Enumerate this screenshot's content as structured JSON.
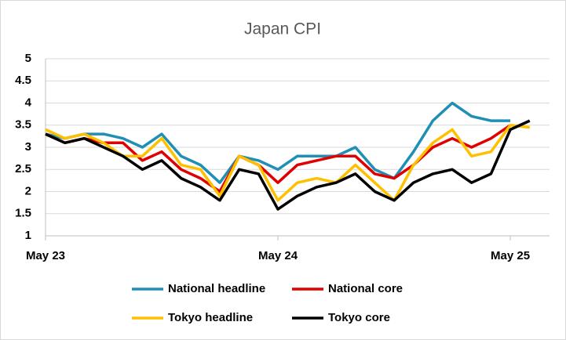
{
  "chart_data": {
    "type": "line",
    "title": "Japan CPI",
    "categories": [
      "May 23",
      null,
      null,
      null,
      null,
      null,
      null,
      null,
      null,
      null,
      null,
      null,
      "May 24",
      null,
      null,
      null,
      null,
      null,
      null,
      null,
      null,
      null,
      null,
      null,
      "May 25",
      null
    ],
    "series": [
      {
        "name": "National headline",
        "color": "#1f8fb4",
        "values": [
          3.3,
          3.2,
          3.3,
          3.3,
          3.2,
          3.0,
          3.3,
          2.8,
          2.6,
          2.2,
          2.8,
          2.7,
          2.5,
          2.8,
          2.8,
          2.8,
          3.0,
          2.5,
          2.3,
          2.9,
          3.6,
          4.0,
          3.7,
          3.6,
          3.6,
          null
        ]
      },
      {
        "name": "National core",
        "color": "#e00000",
        "values": [
          3.3,
          3.1,
          3.2,
          3.1,
          3.1,
          2.7,
          2.9,
          2.5,
          2.3,
          2.0,
          2.8,
          2.6,
          2.2,
          2.6,
          2.7,
          2.8,
          2.8,
          2.4,
          2.3,
          2.6,
          3.0,
          3.2,
          3.0,
          3.2,
          3.5,
          null
        ]
      },
      {
        "name": "Tokyo headline",
        "color": "#ffc000",
        "values": [
          3.4,
          3.2,
          3.3,
          3.1,
          2.8,
          2.8,
          3.2,
          2.6,
          2.5,
          1.9,
          2.8,
          2.6,
          1.8,
          2.2,
          2.3,
          2.2,
          2.6,
          2.2,
          1.8,
          2.6,
          3.1,
          3.4,
          2.8,
          2.9,
          3.5,
          3.45
        ]
      },
      {
        "name": "Tokyo core",
        "color": "#000000",
        "values": [
          3.3,
          3.1,
          3.2,
          3.0,
          2.8,
          2.5,
          2.7,
          2.3,
          2.1,
          1.8,
          2.5,
          2.4,
          1.6,
          1.9,
          2.1,
          2.2,
          2.4,
          2.0,
          1.8,
          2.2,
          2.4,
          2.5,
          2.2,
          2.4,
          3.4,
          3.6
        ]
      }
    ],
    "ylim": [
      1,
      5
    ],
    "yticks": [
      1,
      1.5,
      2,
      2.5,
      3,
      3.5,
      4,
      4.5,
      5
    ],
    "grid": true,
    "legend": "bottom"
  }
}
